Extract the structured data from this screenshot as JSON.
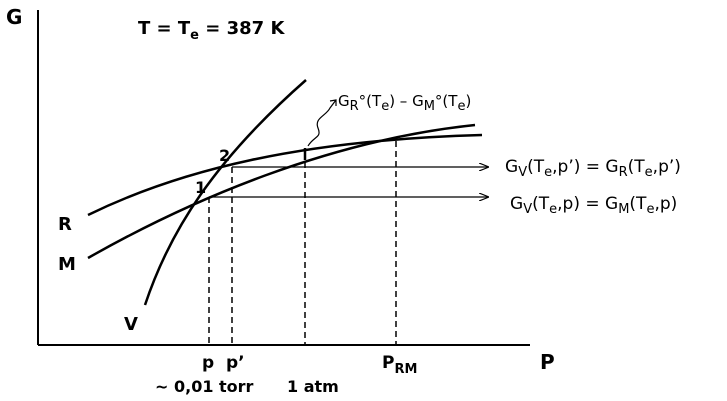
{
  "title": {
    "T": "T = T",
    "sub": "e",
    "value": " = 387 K"
  },
  "axes": {
    "y_label": "G",
    "x_label": "P"
  },
  "curves": {
    "R": "R",
    "M": "M",
    "V": "V"
  },
  "points": {
    "p1": "1",
    "p2": "2"
  },
  "x_ticks": {
    "p": "p",
    "p_prime": "p’",
    "P": "P",
    "P_sub": "RM"
  },
  "below_axis": {
    "pressure_low": "~ 0,01 torr",
    "pressure_atm": "1 atm"
  },
  "annotations": {
    "difference": {
      "G1": "G",
      "G1sub": "R",
      "G1rest": "°(T",
      "G1sub2": "e",
      "G1end": ") – G",
      "G2sub": "M",
      "G2rest": "°(T",
      "G2sub2": "e",
      "G2end": ")"
    },
    "eq_top": {
      "a": "G",
      "asub": "V",
      "b": "(T",
      "bsub": "e",
      "c": ",p’) = G",
      "csub": "R",
      "d": "(T",
      "dsub": "e",
      "e": ",p’)"
    },
    "eq_bottom": {
      "a": "G",
      "asub": "V",
      "b": "(T",
      "bsub": "e",
      "c": ",p) = G",
      "csub": "M",
      "d": "(T",
      "dsub": "e",
      "e": ",p)"
    }
  },
  "colors": {
    "line": "#000000",
    "background": "#ffffff"
  }
}
